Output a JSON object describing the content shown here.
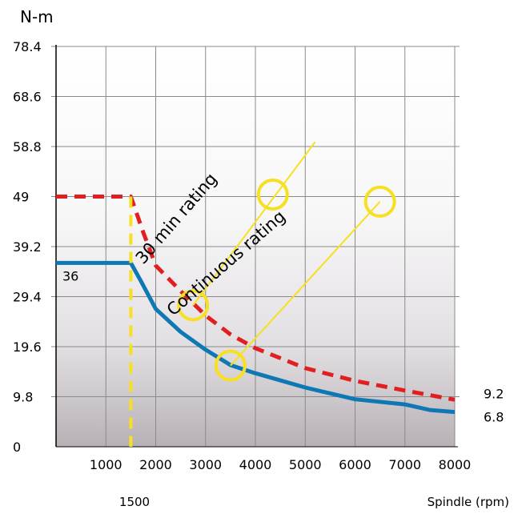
{
  "chart_data": {
    "type": "line",
    "title": "",
    "ylabel": "N-m",
    "xlabel": "Spindle (rpm)",
    "xlim": [
      0,
      8000
    ],
    "ylim": [
      0,
      78.4
    ],
    "x_ticks": [
      {
        "value": 1000,
        "label": "1000"
      },
      {
        "value": 2000,
        "label": "2000"
      },
      {
        "value": 3000,
        "label": "3000"
      },
      {
        "value": 4000,
        "label": "4000"
      },
      {
        "value": 5000,
        "label": "5000"
      },
      {
        "value": 6000,
        "label": "6000"
      },
      {
        "value": 7000,
        "label": "7000"
      },
      {
        "value": 8000,
        "label": "8000"
      }
    ],
    "y_ticks": [
      {
        "value": 0,
        "label": "0"
      },
      {
        "value": 9.8,
        "label": "9.8"
      },
      {
        "value": 19.6,
        "label": "19.6"
      },
      {
        "value": 29.4,
        "label": "29.4"
      },
      {
        "value": 39.2,
        "label": "39.2"
      },
      {
        "value": 49,
        "label": "49"
      },
      {
        "value": 58.8,
        "label": "58.8"
      },
      {
        "value": 68.6,
        "label": "68.6"
      },
      {
        "value": 78.4,
        "label": "78.4"
      }
    ],
    "grid": true,
    "background": "vertical gradient white to grey",
    "series": [
      {
        "style": "dashed",
        "color": "#e02020",
        "x": [
          0,
          1500,
          1750,
          2000,
          2500,
          3000,
          3500,
          4000,
          5000,
          6000,
          7000,
          8000
        ],
        "y": [
          49,
          49,
          42,
          35.5,
          30.5,
          25.7,
          22,
          19.3,
          15.4,
          12.9,
          11,
          9.2
        ]
      },
      {
        "style": "solid",
        "color": "#0e78b4",
        "x": [
          0,
          1500,
          1700,
          2000,
          2500,
          3000,
          3500,
          4000,
          5000,
          6000,
          7000,
          7500,
          8000
        ],
        "y": [
          36,
          36,
          32.5,
          27,
          22.5,
          19,
          16,
          14.4,
          11.6,
          9.3,
          8.3,
          7.2,
          6.8
        ]
      }
    ],
    "vertical_marker": {
      "x": 1500,
      "label": "1500",
      "color": "#f6e020"
    },
    "annotations": [
      {
        "text": "30 min rating",
        "color": "#f6e020"
      },
      {
        "text": "Continuous rating",
        "color": "#f6e020"
      },
      {
        "text": "36",
        "x": 0,
        "y": 36
      },
      {
        "text": "9.2",
        "x": 8000,
        "y": 9.2
      },
      {
        "text": "6.8",
        "x": 8000,
        "y": 6.8
      }
    ]
  }
}
